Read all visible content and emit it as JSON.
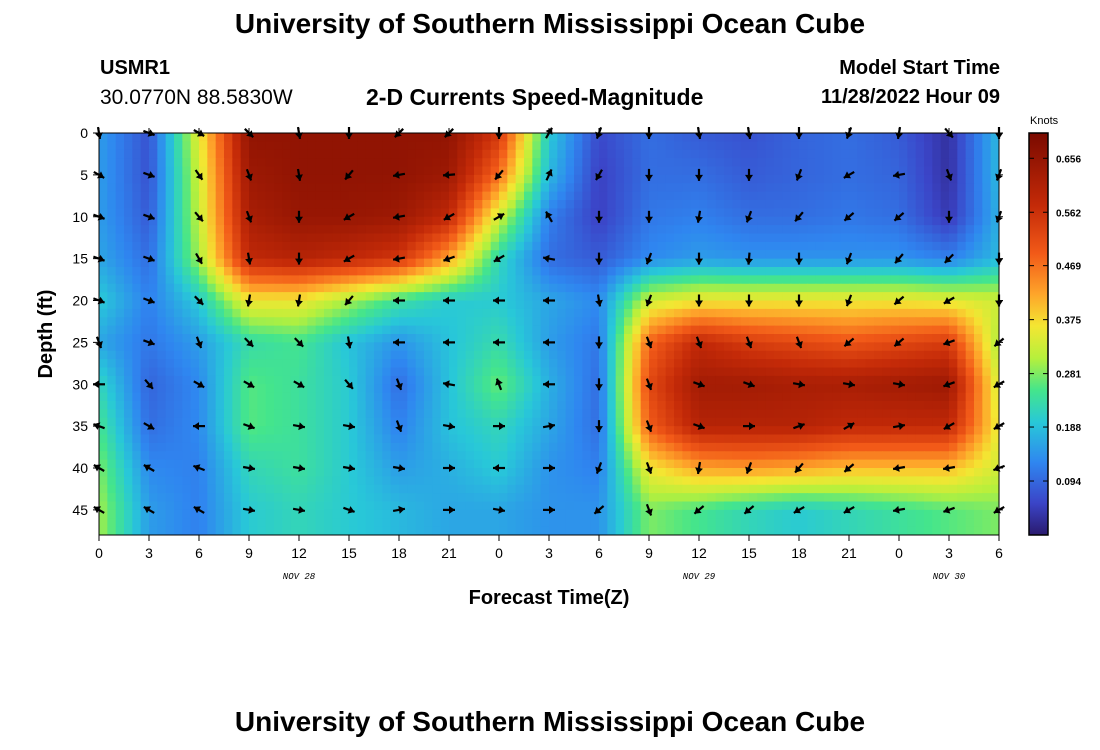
{
  "header": {
    "title": "University of Southern Mississippi Ocean Cube",
    "station": "USMR1",
    "coords": "30.0770N  88.5830W",
    "subtitle": "2-D Currents Speed-Magnitude",
    "model_start_label": "Model Start Time",
    "model_start_value": "11/28/2022 Hour 09",
    "footer_title": "University of Southern Mississippi Ocean Cube"
  },
  "chart_data": {
    "type": "heatmap",
    "title": "2-D Currents Speed-Magnitude",
    "xlabel": "Forecast Time(Z)",
    "ylabel": "Depth (ft)",
    "x_tick_labels": [
      "0",
      "3",
      "6",
      "9",
      "12",
      "15",
      "18",
      "21",
      "0",
      "3",
      "6",
      "9",
      "12",
      "15",
      "18",
      "21",
      "0",
      "3",
      "6"
    ],
    "x_date_labels": [
      {
        "label": "NOV 28",
        "at_hours": 12
      },
      {
        "label": "NOV 29",
        "at_hours": 36
      },
      {
        "label": "NOV 30",
        "at_hours": 51
      }
    ],
    "x_range_hours": [
      0,
      54
    ],
    "y_ticks": [
      0,
      5,
      10,
      15,
      20,
      25,
      30,
      35,
      40,
      45
    ],
    "y_range_ft": [
      0,
      48
    ],
    "y_inverted": true,
    "colorbar": {
      "label": "Knots",
      "ticks": [
        "0.656",
        "0.562",
        "0.469",
        "0.375",
        "0.281",
        "0.188",
        "0.094"
      ],
      "range": [
        0,
        0.7
      ]
    },
    "colors": {
      "low": "#2a1a6e",
      "high": "#7a0a00",
      "arrow": "#000000"
    },
    "grid_hours": [
      0,
      3,
      6,
      9,
      12,
      15,
      18,
      21,
      24,
      27,
      30,
      33,
      36,
      39,
      42,
      45,
      48,
      51,
      54
    ],
    "grid_depths": [
      0,
      5,
      10,
      15,
      20,
      25,
      30,
      35,
      40,
      45
    ],
    "speed_knots": [
      [
        0.15,
        0.07,
        0.35,
        0.66,
        0.66,
        0.66,
        0.66,
        0.66,
        0.55,
        0.2,
        0.06,
        0.1,
        0.08,
        0.07,
        0.09,
        0.1,
        0.08,
        0.03,
        0.18
      ],
      [
        0.15,
        0.07,
        0.33,
        0.64,
        0.66,
        0.66,
        0.66,
        0.64,
        0.47,
        0.18,
        0.05,
        0.1,
        0.1,
        0.08,
        0.09,
        0.1,
        0.09,
        0.03,
        0.18
      ],
      [
        0.15,
        0.08,
        0.32,
        0.62,
        0.65,
        0.65,
        0.64,
        0.58,
        0.33,
        0.12,
        0.05,
        0.11,
        0.12,
        0.1,
        0.1,
        0.11,
        0.1,
        0.04,
        0.17
      ],
      [
        0.16,
        0.1,
        0.3,
        0.58,
        0.6,
        0.58,
        0.55,
        0.42,
        0.22,
        0.1,
        0.08,
        0.13,
        0.15,
        0.14,
        0.14,
        0.14,
        0.14,
        0.12,
        0.18
      ],
      [
        0.2,
        0.12,
        0.2,
        0.36,
        0.36,
        0.3,
        0.24,
        0.2,
        0.2,
        0.16,
        0.13,
        0.33,
        0.36,
        0.36,
        0.36,
        0.36,
        0.36,
        0.35,
        0.33
      ],
      [
        0.16,
        0.11,
        0.15,
        0.23,
        0.25,
        0.19,
        0.14,
        0.19,
        0.23,
        0.15,
        0.11,
        0.48,
        0.58,
        0.54,
        0.52,
        0.5,
        0.52,
        0.54,
        0.3
      ],
      [
        0.22,
        0.09,
        0.13,
        0.26,
        0.24,
        0.2,
        0.1,
        0.19,
        0.27,
        0.17,
        0.1,
        0.52,
        0.63,
        0.63,
        0.62,
        0.62,
        0.63,
        0.64,
        0.33
      ],
      [
        0.25,
        0.1,
        0.13,
        0.26,
        0.24,
        0.2,
        0.12,
        0.19,
        0.22,
        0.16,
        0.1,
        0.49,
        0.6,
        0.6,
        0.6,
        0.58,
        0.58,
        0.58,
        0.35
      ],
      [
        0.28,
        0.13,
        0.12,
        0.22,
        0.24,
        0.2,
        0.15,
        0.17,
        0.2,
        0.14,
        0.12,
        0.36,
        0.42,
        0.43,
        0.42,
        0.4,
        0.4,
        0.4,
        0.33
      ],
      [
        0.3,
        0.15,
        0.12,
        0.2,
        0.22,
        0.2,
        0.18,
        0.16,
        0.16,
        0.14,
        0.14,
        0.28,
        0.25,
        0.22,
        0.2,
        0.22,
        0.24,
        0.26,
        0.28
      ]
    ],
    "direction_deg": [
      [
        170,
        110,
        120,
        135,
        170,
        180,
        225,
        225,
        180,
        30,
        200,
        180,
        170,
        170,
        180,
        200,
        190,
        140,
        180
      ],
      [
        120,
        110,
        145,
        160,
        170,
        220,
        260,
        265,
        220,
        25,
        210,
        180,
        180,
        180,
        200,
        240,
        260,
        160,
        200
      ],
      [
        110,
        110,
        140,
        160,
        180,
        240,
        260,
        240,
        60,
        330,
        180,
        180,
        190,
        200,
        220,
        230,
        230,
        180,
        200
      ],
      [
        110,
        110,
        150,
        170,
        180,
        240,
        260,
        250,
        240,
        280,
        180,
        200,
        180,
        185,
        180,
        200,
        220,
        225,
        180
      ],
      [
        110,
        110,
        135,
        190,
        190,
        220,
        270,
        270,
        270,
        270,
        170,
        200,
        180,
        180,
        180,
        200,
        230,
        240,
        180
      ],
      [
        160,
        110,
        160,
        135,
        135,
        170,
        270,
        270,
        270,
        270,
        180,
        160,
        160,
        160,
        160,
        230,
        230,
        250,
        230
      ],
      [
        270,
        140,
        120,
        120,
        120,
        140,
        160,
        280,
        340,
        270,
        180,
        160,
        110,
        110,
        100,
        100,
        100,
        250,
        240
      ],
      [
        290,
        120,
        270,
        110,
        100,
        100,
        160,
        100,
        90,
        80,
        180,
        160,
        110,
        90,
        70,
        60,
        80,
        240,
        240
      ],
      [
        300,
        300,
        290,
        100,
        100,
        100,
        100,
        90,
        270,
        90,
        200,
        160,
        190,
        200,
        220,
        230,
        260,
        260,
        250
      ],
      [
        300,
        300,
        300,
        100,
        100,
        110,
        80,
        90,
        100,
        90,
        230,
        160,
        230,
        230,
        240,
        240,
        260,
        250,
        240
      ]
    ]
  }
}
